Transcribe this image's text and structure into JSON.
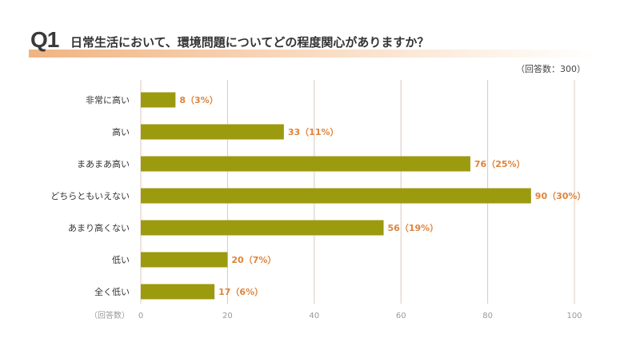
{
  "header": {
    "q_label": "Q1",
    "title": "日常生活において、環境問題についてどの程度関心がありますか？",
    "respondents": "（回答数：300）"
  },
  "chart_data": {
    "type": "bar",
    "orientation": "horizontal",
    "categories": [
      "非常に高い",
      "高い",
      "まあまあ高い",
      "どちらともいえない",
      "あまり高くない",
      "低い",
      "全く低い"
    ],
    "values": [
      8,
      33,
      76,
      90,
      56,
      20,
      17
    ],
    "data_labels": [
      "8（3%）",
      "33（11%）",
      "76（25%）",
      "90（30%）",
      "56（19%）",
      "20（7%）",
      "17（6%）"
    ],
    "xlabel": "（回答数）",
    "xlim": [
      0,
      100
    ],
    "xticks": [
      0,
      20,
      40,
      60,
      80,
      100
    ],
    "grid": true,
    "colors": {
      "bar": "#9c9a0e",
      "value_label": "#e0833a",
      "grid": "#dcc8bd"
    }
  }
}
